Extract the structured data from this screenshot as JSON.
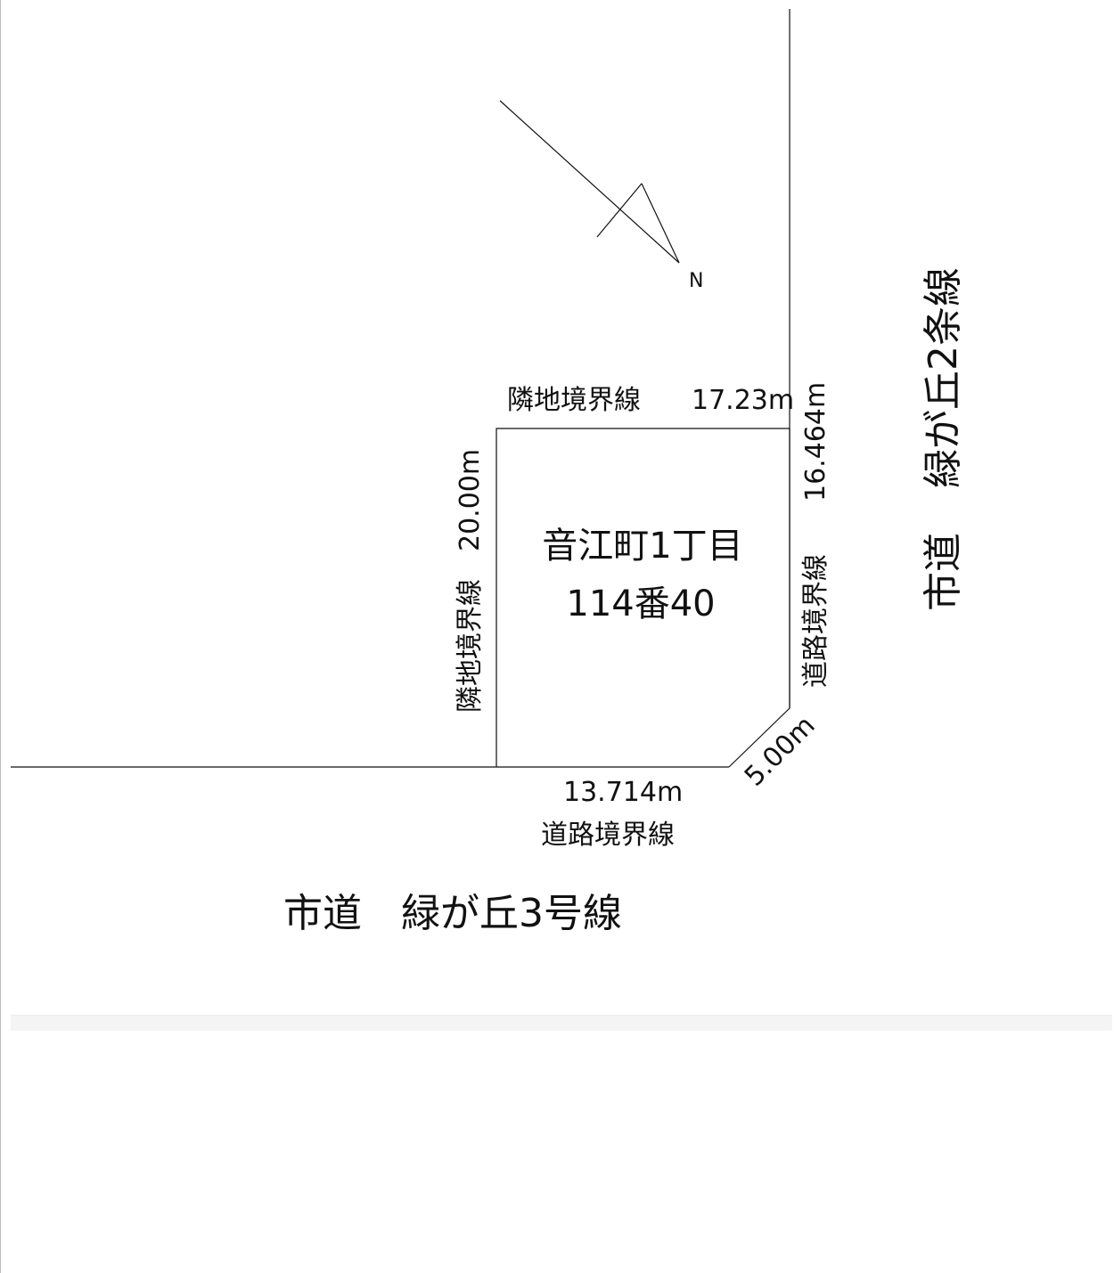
{
  "north_label": "N",
  "top_boundary": {
    "name": "隣地境界線",
    "length": "17.23m"
  },
  "left_boundary": {
    "name": "隣地境界線",
    "length": "20.00m"
  },
  "right_boundary": {
    "name": "道路境界線",
    "length": "16.464m"
  },
  "corner_cut": {
    "length": "5.00m"
  },
  "bottom_boundary": {
    "name": "道路境界線",
    "length": "13.714m"
  },
  "parcel": {
    "line1": "音江町1丁目",
    "line2": "114番40"
  },
  "road_right": {
    "prefix": "市道",
    "name": "緑が丘2条線"
  },
  "road_bottom": "市道　緑が丘3号線"
}
